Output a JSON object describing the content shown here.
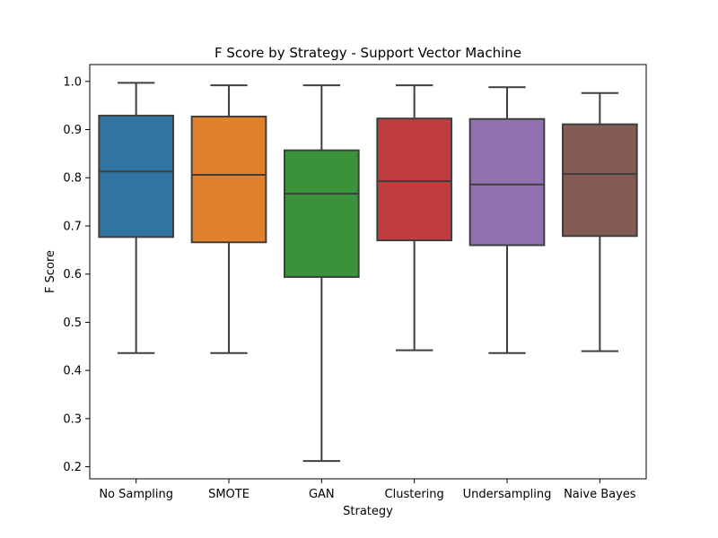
{
  "chart_data": {
    "type": "box",
    "title": "F Score by Strategy - Support Vector Machine",
    "xlabel": "Strategy",
    "ylabel": "F Score",
    "ylim": [
      0.175,
      1.035
    ],
    "yticks": [
      0.2,
      0.3,
      0.4,
      0.5,
      0.6,
      0.7,
      0.8,
      0.9,
      1.0
    ],
    "ytick_labels": [
      "0.2",
      "0.3",
      "0.4",
      "0.5",
      "0.6",
      "0.7",
      "0.8",
      "0.9",
      "1.0"
    ],
    "grid": false,
    "categories": [
      "No Sampling",
      "SMOTE",
      "GAN",
      "Clustering",
      "Undersampling",
      "Naive Bayes"
    ],
    "boxes": [
      {
        "category": "No Sampling",
        "color": "#3274a1",
        "whisker_low": 0.436,
        "q1": 0.677,
        "median": 0.813,
        "q3": 0.929,
        "whisker_high": 0.997
      },
      {
        "category": "SMOTE",
        "color": "#e1812c",
        "whisker_low": 0.436,
        "q1": 0.666,
        "median": 0.806,
        "q3": 0.927,
        "whisker_high": 0.992
      },
      {
        "category": "GAN",
        "color": "#3a923a",
        "whisker_low": 0.212,
        "q1": 0.594,
        "median": 0.767,
        "q3": 0.857,
        "whisker_high": 0.992
      },
      {
        "category": "Clustering",
        "color": "#c03d3e",
        "whisker_low": 0.442,
        "q1": 0.67,
        "median": 0.793,
        "q3": 0.923,
        "whisker_high": 0.992
      },
      {
        "category": "Undersampling",
        "color": "#9372b2",
        "whisker_low": 0.436,
        "q1": 0.66,
        "median": 0.786,
        "q3": 0.922,
        "whisker_high": 0.988
      },
      {
        "category": "Naive Bayes",
        "color": "#845b53",
        "whisker_low": 0.44,
        "q1": 0.679,
        "median": 0.808,
        "q3": 0.911,
        "whisker_high": 0.976
      }
    ]
  }
}
